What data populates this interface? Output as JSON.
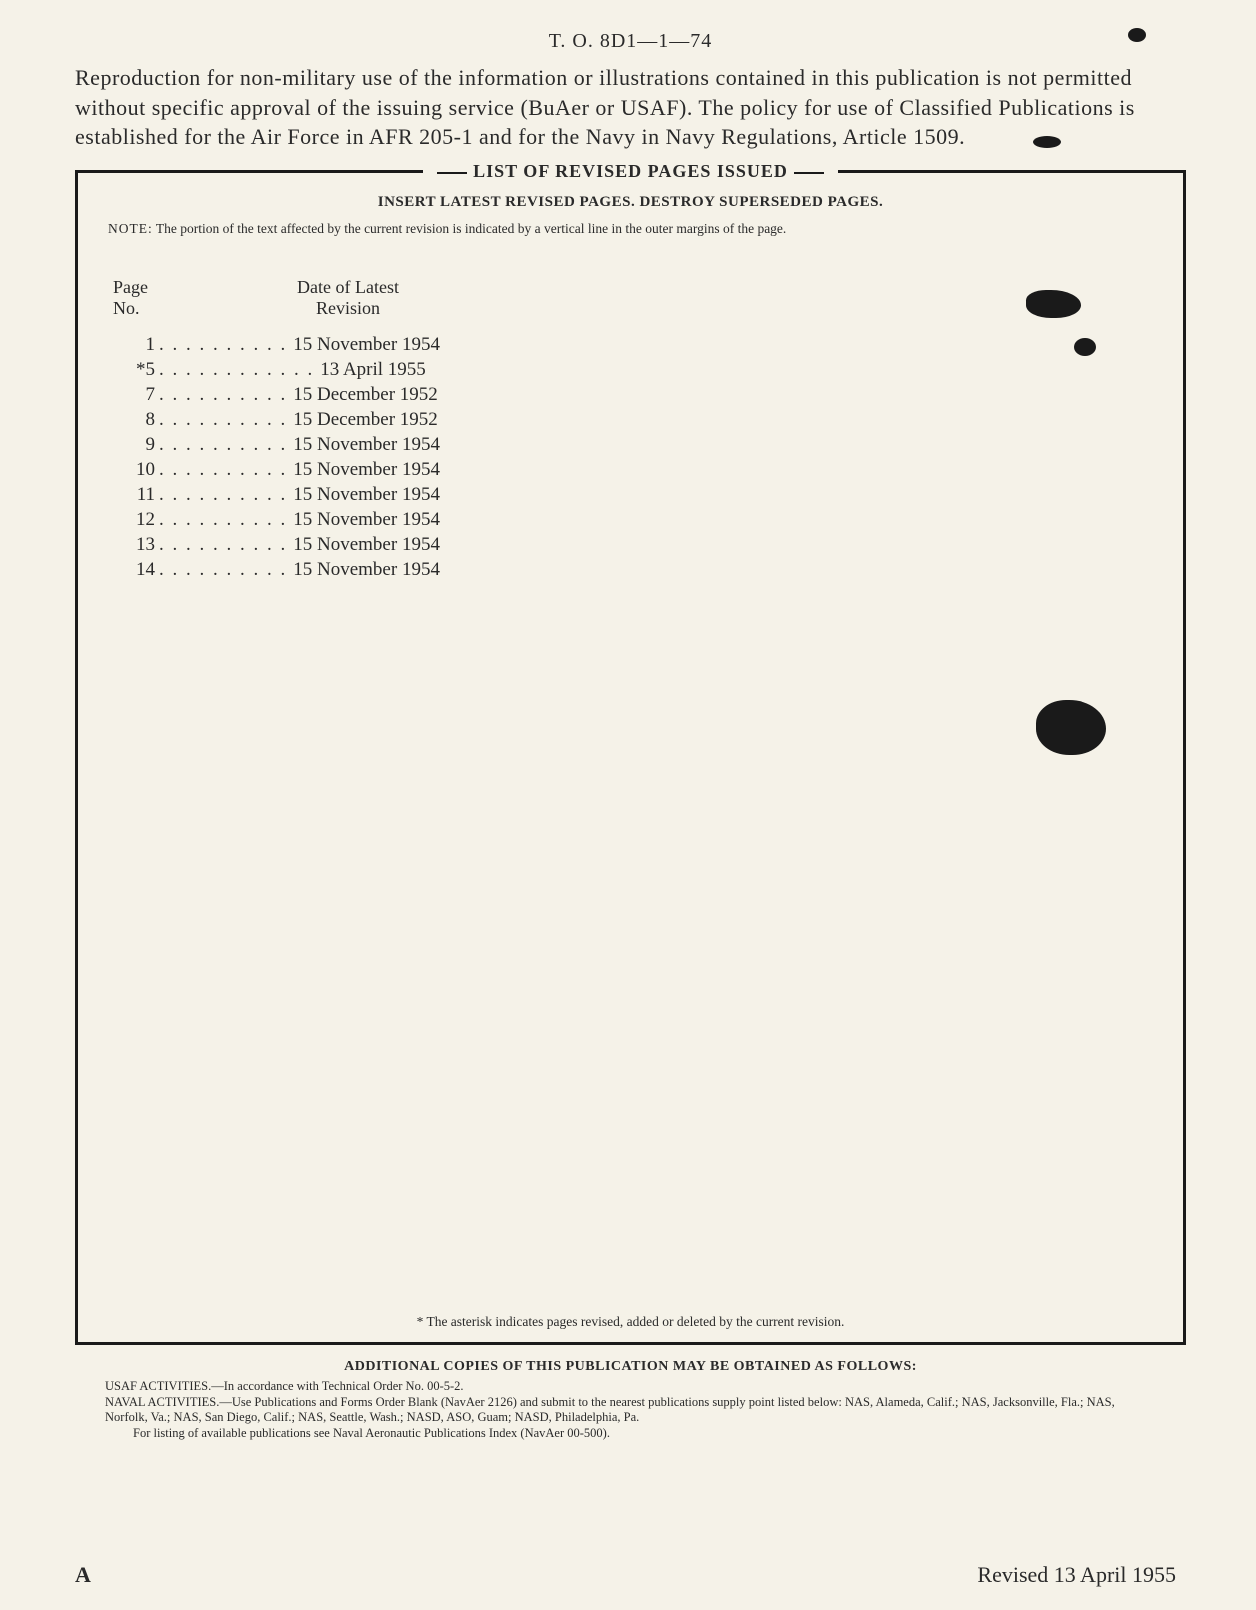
{
  "header_id": "T. O. 8D1—1—74",
  "intro": "Reproduction for non-military use of the information or illustrations contained in this publication is not permitted without specific approval of the issuing service (BuAer or USAF). The policy for use of Classified Publications is established for the Air Force in AFR 205-1 and for the Navy in Navy Regulations, Article 1509.",
  "box_title": "LIST OF REVISED PAGES ISSUED",
  "subhead": "INSERT LATEST REVISED PAGES. DESTROY SUPERSEDED PAGES.",
  "note_label": "NOTE:",
  "note_text": "The portion of the text affected by the current revision is indicated by a vertical line in the outer margins of the page.",
  "col_head_page_l1": "Page",
  "col_head_page_l2": "No.",
  "col_head_date_l1": "Date of Latest",
  "col_head_date_l2": "Revision",
  "rows": [
    {
      "page": "  1",
      "dots": ". . . . . . . . . .",
      "date": "15 November 1954"
    },
    {
      "page": " *5",
      "dots": ". . . . . . . . . . . .",
      "date": "13 April 1955"
    },
    {
      "page": "  7",
      "dots": ". . . . . . . . . .",
      "date": "15 December 1952"
    },
    {
      "page": "  8",
      "dots": ". . . . . . . . . .",
      "date": "15 December 1952"
    },
    {
      "page": "  9",
      "dots": ". . . . . . . . . .",
      "date": "15 November 1954"
    },
    {
      "page": " 10",
      "dots": ". . . . . . . . . .",
      "date": "15 November 1954"
    },
    {
      "page": " 11",
      "dots": ". . . . . . . . . .",
      "date": "15 November 1954"
    },
    {
      "page": " 12",
      "dots": ". . . . . . . . . .",
      "date": "15 November 1954"
    },
    {
      "page": " 13",
      "dots": ". . . . . . . . . .",
      "date": "15 November 1954"
    },
    {
      "page": " 14",
      "dots": ". . . . . . . . . .",
      "date": "15 November 1954"
    }
  ],
  "asterisk_note": "* The asterisk indicates pages revised, added or deleted by the current revision.",
  "footer_head": "ADDITIONAL COPIES OF THIS PUBLICATION MAY BE OBTAINED AS FOLLOWS:",
  "footer_usaf_label": "USAF ACTIVITIES.—",
  "footer_usaf": "In accordance with Technical Order No. 00-5-2.",
  "footer_naval_label": "NAVAL ACTIVITIES.—",
  "footer_naval": "Use Publications and Forms Order Blank (NavAer 2126) and submit to the nearest publications supply point listed below: NAS, Alameda, Calif.; NAS, Jacksonville, Fla.; NAS, Norfolk, Va.; NAS, San Diego, Calif.; NAS, Seattle, Wash.; NASD, ASO, Guam; NASD, Philadelphia, Pa.",
  "footer_listing": "For listing of available publications see Naval Aeronautic Publications Index (NavAer 00-500).",
  "page_letter": "A",
  "revised_stamp": "Revised 13 April 1955"
}
